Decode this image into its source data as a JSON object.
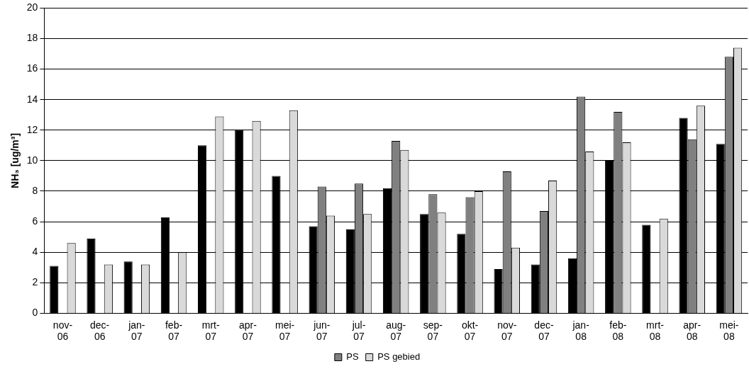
{
  "chart_data": {
    "type": "bar",
    "ylabel": "NH₃ [ug/m³]",
    "categories": [
      "nov-06",
      "dec-06",
      "jan-07",
      "feb-07",
      "mrt-07",
      "apr-07",
      "mei-07",
      "jun-07",
      "jul-07",
      "aug-07",
      "sep-07",
      "okt-07",
      "nov-07",
      "dec-07",
      "jan-08",
      "feb-08",
      "mrt-08",
      "apr-08",
      "mei-08"
    ],
    "series": [
      {
        "color": "#000000",
        "values": [
          3.1,
          4.9,
          3.4,
          6.3,
          11.0,
          12.0,
          9.0,
          5.7,
          5.5,
          8.2,
          6.5,
          5.2,
          2.9,
          3.2,
          3.6,
          10.0,
          5.8,
          12.8,
          11.1
        ]
      },
      {
        "name": "PS",
        "color": "#808080",
        "values": [
          null,
          null,
          null,
          null,
          null,
          null,
          null,
          8.3,
          8.5,
          11.3,
          7.8,
          7.6,
          9.3,
          6.7,
          14.2,
          13.2,
          null,
          11.4,
          16.8
        ]
      },
      {
        "name": "PS gebied",
        "color": "#d9d9d9",
        "values": [
          4.6,
          3.2,
          3.2,
          4.0,
          12.9,
          12.6,
          13.3,
          6.4,
          6.5,
          10.7,
          6.6,
          8.0,
          4.3,
          8.7,
          10.6,
          11.2,
          6.2,
          13.6,
          17.4
        ]
      }
    ],
    "ylim": [
      0,
      20
    ],
    "yticks": [
      0,
      2,
      4,
      6,
      8,
      10,
      12,
      14,
      16,
      18,
      20
    ],
    "grid": "y",
    "legend": "bottom"
  }
}
